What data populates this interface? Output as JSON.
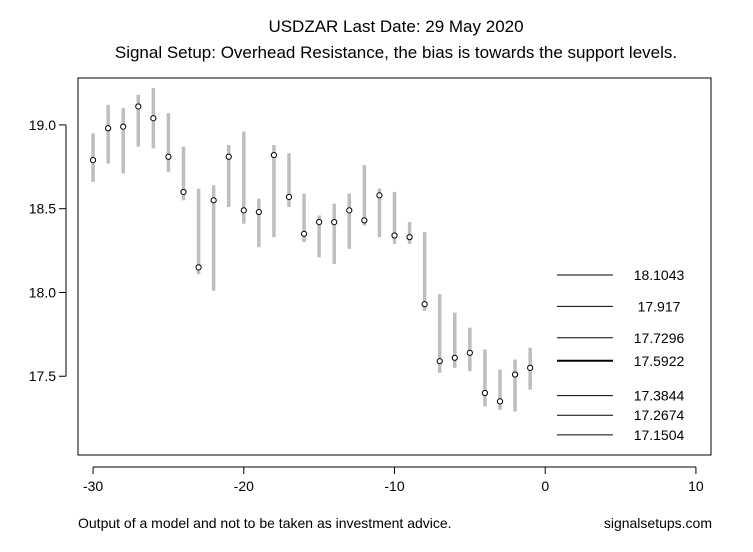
{
  "chart_data": {
    "type": "range-dot",
    "title": "USDZAR Last Date: 29 May 2020",
    "subtitle": "Signal Setup: Overhead Resistance, the bias is towards the support levels.",
    "xlabel": "",
    "ylabel": "",
    "xlim": [
      -31,
      11
    ],
    "ylim": [
      17.03,
      19.28
    ],
    "xticks": [
      -30,
      -20,
      -10,
      0,
      10
    ],
    "xtick_labels": [
      "-30",
      "-20",
      "-10",
      "0",
      "10"
    ],
    "yticks": [
      17.5,
      18.0,
      18.5,
      19.0
    ],
    "ytick_labels": [
      "17.5",
      "18.0",
      "18.5",
      "19.0"
    ],
    "grid": false,
    "range_color": "#bebebe",
    "series": [
      {
        "x": [
          -30,
          -29,
          -28,
          -27,
          -26,
          -25,
          -24,
          -23,
          -22,
          -21,
          -20,
          -19,
          -18,
          -17,
          -16,
          -15,
          -14,
          -13,
          -12,
          -11,
          -10,
          -9,
          -8,
          -7,
          -6,
          -5,
          -4,
          -3,
          -2,
          -1
        ],
        "low": [
          18.66,
          18.77,
          18.71,
          18.87,
          18.86,
          18.72,
          18.55,
          18.11,
          18.01,
          18.51,
          18.41,
          18.27,
          18.33,
          18.51,
          18.3,
          18.21,
          18.17,
          18.26,
          18.4,
          18.33,
          18.29,
          18.29,
          17.89,
          17.52,
          17.55,
          17.53,
          17.32,
          17.3,
          17.29,
          17.42
        ],
        "high": [
          18.95,
          19.12,
          19.1,
          19.18,
          19.22,
          19.07,
          18.87,
          18.62,
          18.64,
          18.88,
          18.96,
          18.56,
          18.88,
          18.83,
          18.59,
          18.46,
          18.53,
          18.59,
          18.76,
          18.62,
          18.6,
          18.42,
          18.36,
          17.99,
          17.88,
          17.79,
          17.66,
          17.54,
          17.6,
          17.67
        ],
        "close": [
          18.79,
          18.98,
          18.99,
          19.11,
          19.04,
          18.81,
          18.6,
          18.15,
          18.55,
          18.81,
          18.49,
          18.48,
          18.82,
          18.57,
          18.35,
          18.42,
          18.42,
          18.49,
          18.43,
          18.58,
          18.34,
          18.33,
          17.93,
          17.59,
          17.61,
          17.64,
          17.4,
          17.35,
          17.51,
          17.55
        ]
      }
    ],
    "levels": [
      {
        "value": 18.1043,
        "label": "18.1043",
        "bold": false
      },
      {
        "value": 17.917,
        "label": "17.917",
        "bold": false
      },
      {
        "value": 17.7296,
        "label": "17.7296",
        "bold": false
      },
      {
        "value": 17.5922,
        "label": "17.5922",
        "bold": true
      },
      {
        "value": 17.3844,
        "label": "17.3844",
        "bold": false
      },
      {
        "value": 17.2674,
        "label": "17.2674",
        "bold": false
      },
      {
        "value": 17.1504,
        "label": "17.1504",
        "bold": false
      }
    ]
  },
  "footer": {
    "disclaimer": "Output of a model and not to be taken as investment advice.",
    "source": "signalsetups.com"
  }
}
